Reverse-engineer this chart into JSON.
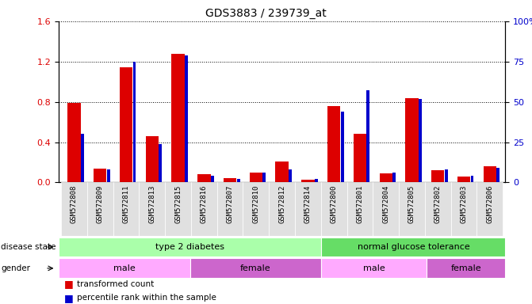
{
  "title": "GDS3883 / 239739_at",
  "samples": [
    "GSM572808",
    "GSM572809",
    "GSM572811",
    "GSM572813",
    "GSM572815",
    "GSM572816",
    "GSM572807",
    "GSM572810",
    "GSM572812",
    "GSM572814",
    "GSM572800",
    "GSM572801",
    "GSM572804",
    "GSM572805",
    "GSM572802",
    "GSM572803",
    "GSM572806"
  ],
  "transformed_count": [
    0.79,
    0.14,
    1.14,
    0.46,
    1.28,
    0.08,
    0.04,
    0.1,
    0.21,
    0.03,
    0.76,
    0.48,
    0.09,
    0.84,
    0.12,
    0.06,
    0.16
  ],
  "percentile_rank": [
    30,
    8,
    75,
    24,
    79,
    4,
    2,
    6,
    8,
    2,
    44,
    57,
    6,
    52,
    8,
    4,
    9
  ],
  "percentile_scale": 1.6,
  "ylim_left": [
    0,
    1.6
  ],
  "ylim_right": [
    0,
    100
  ],
  "yticks_left": [
    0,
    0.4,
    0.8,
    1.2,
    1.6
  ],
  "yticks_right": [
    0,
    25,
    50,
    75,
    100
  ],
  "bar_color_red": "#dd0000",
  "bar_color_blue": "#0000cc",
  "disease_state_groups": [
    {
      "label": "type 2 diabetes",
      "start": 0,
      "end": 9,
      "color": "#aaffaa"
    },
    {
      "label": "normal glucose tolerance",
      "start": 10,
      "end": 16,
      "color": "#66dd66"
    }
  ],
  "gender_groups": [
    {
      "label": "male",
      "start": 0,
      "end": 4,
      "color": "#ffaaff"
    },
    {
      "label": "female",
      "start": 5,
      "end": 9,
      "color": "#cc66cc"
    },
    {
      "label": "male",
      "start": 10,
      "end": 13,
      "color": "#ffaaff"
    },
    {
      "label": "female",
      "start": 14,
      "end": 16,
      "color": "#cc66cc"
    }
  ],
  "legend_items": [
    {
      "label": "transformed count",
      "color": "#dd0000"
    },
    {
      "label": "percentile rank within the sample",
      "color": "#0000cc"
    }
  ]
}
